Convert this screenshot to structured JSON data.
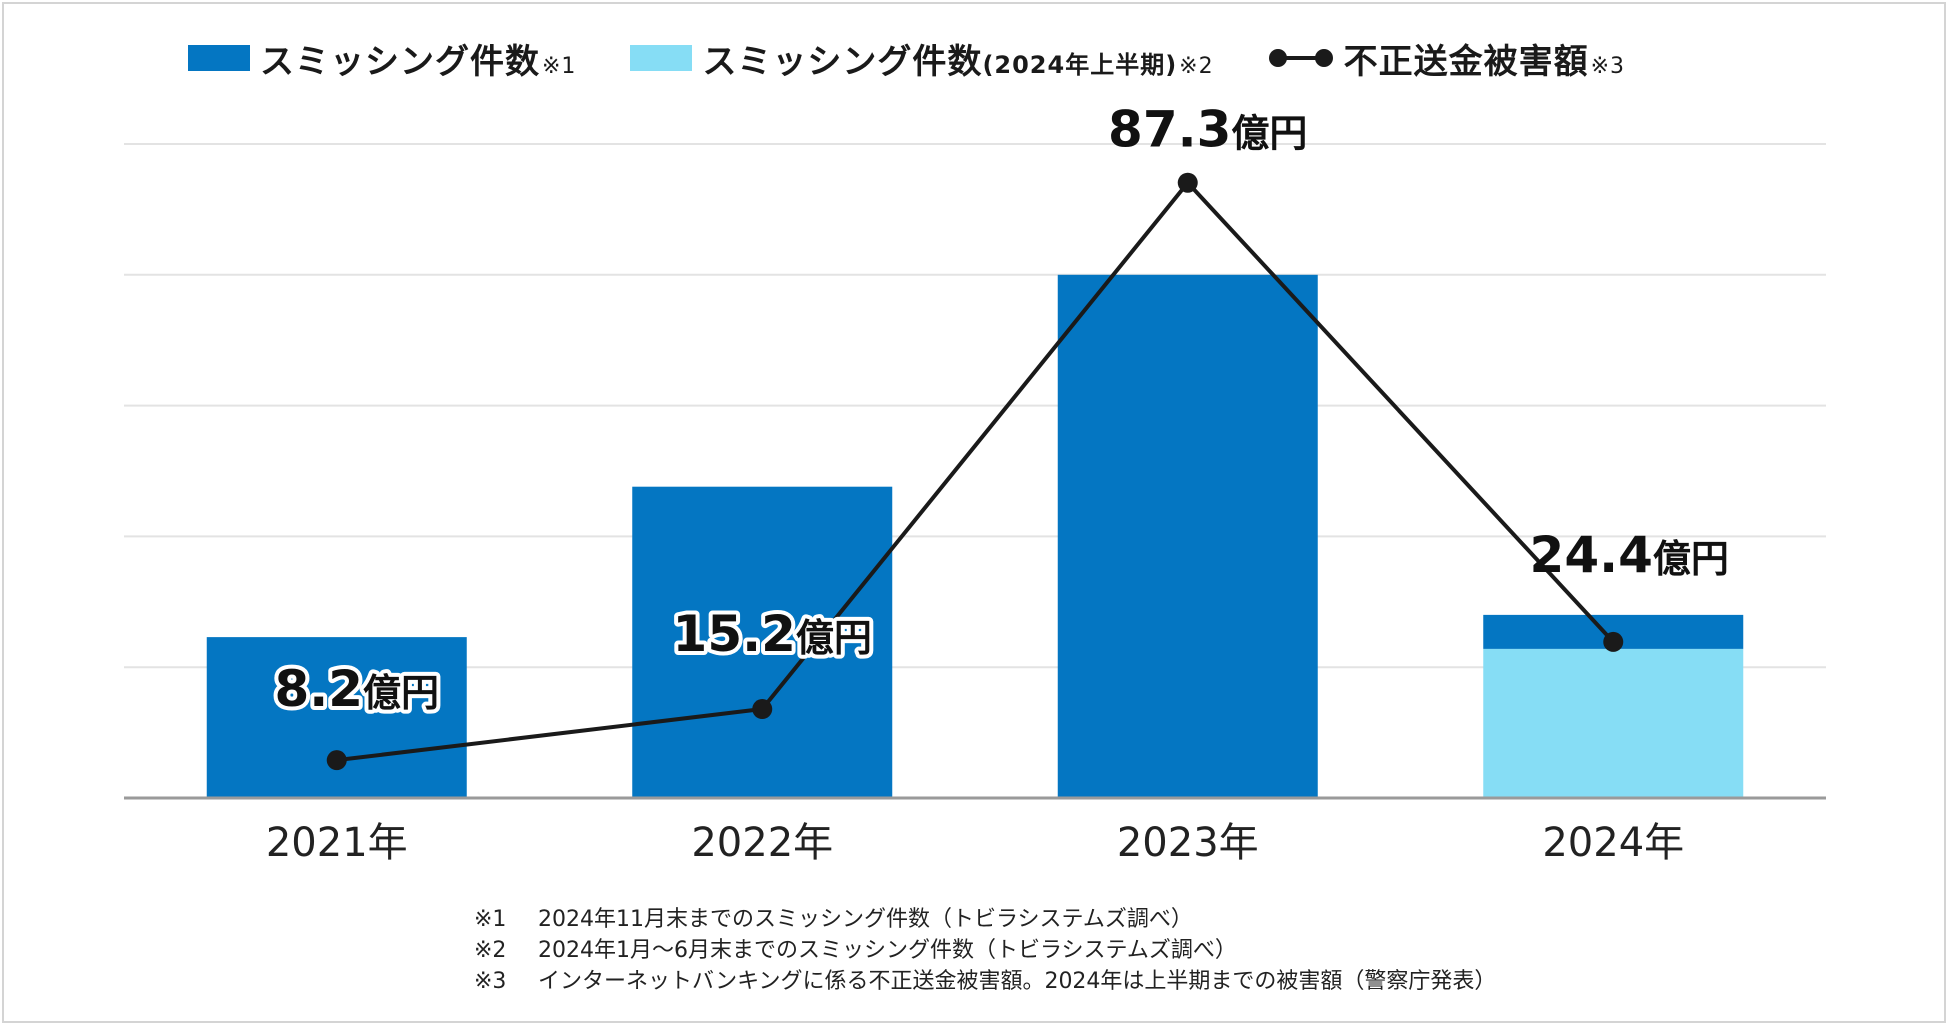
{
  "legend": {
    "items": [
      {
        "label": "スミッシング件数",
        "paren": "",
        "note": "※1",
        "color": "#0476c2",
        "kind": "bar"
      },
      {
        "label": "スミッシング件数",
        "paren": "(2024年上半期)",
        "note": "※2",
        "color": "#86ddf5",
        "kind": "bar"
      },
      {
        "label": "不正送金被害額",
        "paren": "",
        "note": "※3",
        "color": "#1a1a1a",
        "kind": "line"
      }
    ]
  },
  "chart_data": {
    "type": "bar",
    "categories": [
      "2021年",
      "2022年",
      "2023年",
      "2024年"
    ],
    "ylim": [
      0,
      5
    ],
    "grid": true,
    "series": [
      {
        "name": "スミッシング件数※1",
        "kind": "bar",
        "color": "#0476c2",
        "values": [
          1.23,
          2.38,
          4.0,
          0.26
        ],
        "stack_on_first_half": true
      },
      {
        "name": "スミッシング件数(2024年上半期)※2",
        "kind": "bar",
        "color": "#86ddf5",
        "values": [
          0,
          0,
          0,
          1.14
        ]
      },
      {
        "name": "不正送金被害額※3",
        "kind": "line",
        "color": "#1a1a1a",
        "values": [
          8.2,
          15.2,
          87.3,
          24.4
        ],
        "ylim": [
          0,
          100
        ]
      }
    ],
    "data_labels": [
      {
        "number": "8.2",
        "unit": "億円"
      },
      {
        "number": "15.2",
        "unit": "億円"
      },
      {
        "number": "87.3",
        "unit": "億円"
      },
      {
        "number": "24.4",
        "unit": "億円"
      }
    ]
  },
  "footnotes": [
    {
      "mark": "※1",
      "text": "2024年11月末までのスミッシング件数（トビラシステムズ調べ）"
    },
    {
      "mark": "※2",
      "text": "2024年1月〜6月末までのスミッシング件数（トビラシステムズ調べ）"
    },
    {
      "mark": "※3",
      "text": "インターネットバンキングに係る不正送金被害額。2024年は上半期までの被害額（警察庁発表）"
    }
  ]
}
